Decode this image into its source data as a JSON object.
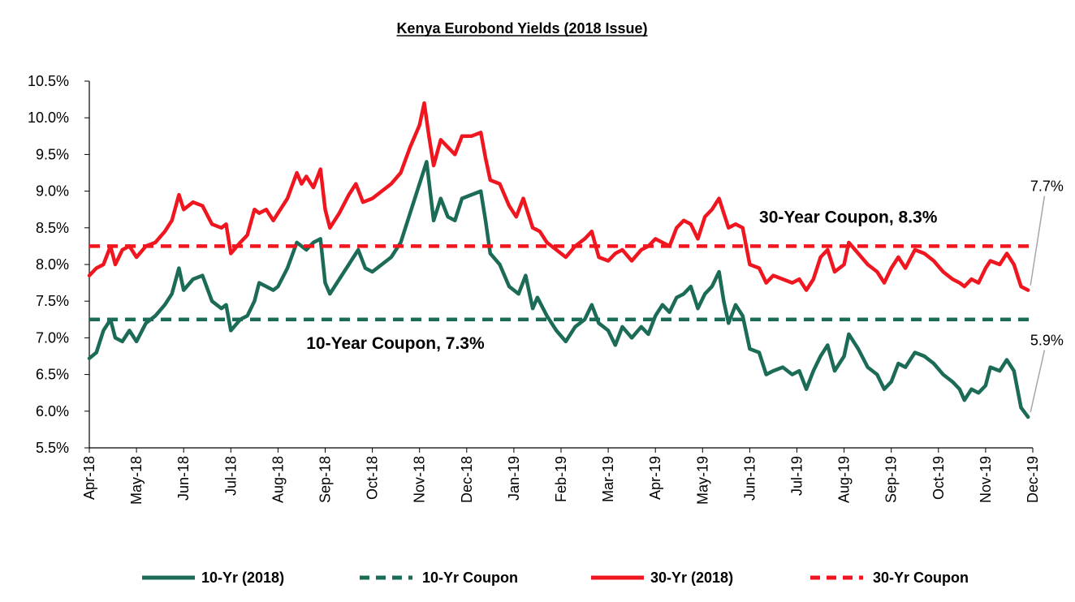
{
  "chart_data": {
    "type": "line",
    "title": "Kenya Eurobond Yields (2018 Issue)",
    "y_ticks": [
      "10.5%",
      "10.0%",
      "9.5%",
      "9.0%",
      "8.5%",
      "8.0%",
      "7.5%",
      "7.0%",
      "6.5%",
      "6.0%",
      "5.5%"
    ],
    "ylim": [
      5.5,
      10.5
    ],
    "x_ticks": [
      "Apr-18",
      "May-18",
      "Jun-18",
      "Jul-18",
      "Aug-18",
      "Sep-18",
      "Oct-18",
      "Nov-18",
      "Dec-18",
      "Jan-19",
      "Feb-19",
      "Mar-19",
      "Apr-19",
      "May-19",
      "Jun-19",
      "Jul-19",
      "Aug-19",
      "Sep-19",
      "Oct-19",
      "Nov-19",
      "Dec-19"
    ],
    "xlim": [
      0,
      20
    ],
    "grid": false,
    "legend_position": "bottom",
    "series": [
      {
        "name": "10-Yr (2018)",
        "style": "solid",
        "color": "#1b6b57",
        "points": [
          [
            0,
            6.72
          ],
          [
            0.15,
            6.8
          ],
          [
            0.3,
            7.1
          ],
          [
            0.45,
            7.25
          ],
          [
            0.55,
            7.0
          ],
          [
            0.7,
            6.95
          ],
          [
            0.85,
            7.1
          ],
          [
            1.0,
            6.95
          ],
          [
            1.2,
            7.2
          ],
          [
            1.4,
            7.3
          ],
          [
            1.6,
            7.45
          ],
          [
            1.75,
            7.6
          ],
          [
            1.9,
            7.95
          ],
          [
            2.0,
            7.65
          ],
          [
            2.2,
            7.8
          ],
          [
            2.4,
            7.85
          ],
          [
            2.6,
            7.5
          ],
          [
            2.8,
            7.4
          ],
          [
            2.9,
            7.45
          ],
          [
            3.0,
            7.1
          ],
          [
            3.2,
            7.25
          ],
          [
            3.35,
            7.3
          ],
          [
            3.5,
            7.5
          ],
          [
            3.6,
            7.75
          ],
          [
            3.75,
            7.7
          ],
          [
            3.9,
            7.65
          ],
          [
            4.0,
            7.7
          ],
          [
            4.2,
            7.95
          ],
          [
            4.4,
            8.3
          ],
          [
            4.6,
            8.2
          ],
          [
            4.75,
            8.3
          ],
          [
            4.9,
            8.35
          ],
          [
            5.0,
            7.75
          ],
          [
            5.1,
            7.6
          ],
          [
            5.3,
            7.8
          ],
          [
            5.5,
            8.0
          ],
          [
            5.7,
            8.2
          ],
          [
            5.85,
            7.95
          ],
          [
            6.0,
            7.9
          ],
          [
            6.2,
            8.0
          ],
          [
            6.4,
            8.1
          ],
          [
            6.6,
            8.3
          ],
          [
            6.8,
            8.7
          ],
          [
            6.95,
            9.0
          ],
          [
            7.0,
            9.1
          ],
          [
            7.15,
            9.4
          ],
          [
            7.3,
            8.6
          ],
          [
            7.45,
            8.9
          ],
          [
            7.6,
            8.65
          ],
          [
            7.75,
            8.6
          ],
          [
            7.9,
            8.9
          ],
          [
            8.1,
            8.95
          ],
          [
            8.3,
            9.0
          ],
          [
            8.4,
            8.6
          ],
          [
            8.5,
            8.15
          ],
          [
            8.7,
            8.0
          ],
          [
            8.9,
            7.7
          ],
          [
            9.1,
            7.6
          ],
          [
            9.25,
            7.85
          ],
          [
            9.4,
            7.4
          ],
          [
            9.5,
            7.55
          ],
          [
            9.7,
            7.3
          ],
          [
            9.9,
            7.1
          ],
          [
            10.1,
            6.95
          ],
          [
            10.3,
            7.15
          ],
          [
            10.5,
            7.25
          ],
          [
            10.65,
            7.45
          ],
          [
            10.8,
            7.2
          ],
          [
            11.0,
            7.1
          ],
          [
            11.15,
            6.9
          ],
          [
            11.3,
            7.15
          ],
          [
            11.5,
            7.0
          ],
          [
            11.7,
            7.15
          ],
          [
            11.85,
            7.05
          ],
          [
            12.0,
            7.3
          ],
          [
            12.15,
            7.45
          ],
          [
            12.3,
            7.35
          ],
          [
            12.45,
            7.55
          ],
          [
            12.6,
            7.6
          ],
          [
            12.75,
            7.7
          ],
          [
            12.9,
            7.4
          ],
          [
            13.05,
            7.6
          ],
          [
            13.2,
            7.7
          ],
          [
            13.35,
            7.9
          ],
          [
            13.45,
            7.5
          ],
          [
            13.55,
            7.2
          ],
          [
            13.7,
            7.45
          ],
          [
            13.85,
            7.3
          ],
          [
            14.0,
            6.85
          ],
          [
            14.2,
            6.8
          ],
          [
            14.35,
            6.5
          ],
          [
            14.5,
            6.55
          ],
          [
            14.7,
            6.6
          ],
          [
            14.9,
            6.5
          ],
          [
            15.05,
            6.55
          ],
          [
            15.2,
            6.3
          ],
          [
            15.35,
            6.55
          ],
          [
            15.5,
            6.75
          ],
          [
            15.65,
            6.9
          ],
          [
            15.8,
            6.55
          ],
          [
            16.0,
            6.75
          ],
          [
            16.1,
            7.05
          ],
          [
            16.3,
            6.85
          ],
          [
            16.5,
            6.6
          ],
          [
            16.7,
            6.5
          ],
          [
            16.85,
            6.3
          ],
          [
            17.0,
            6.4
          ],
          [
            17.15,
            6.65
          ],
          [
            17.3,
            6.6
          ],
          [
            17.5,
            6.8
          ],
          [
            17.7,
            6.75
          ],
          [
            17.9,
            6.65
          ],
          [
            18.1,
            6.5
          ],
          [
            18.3,
            6.4
          ],
          [
            18.45,
            6.3
          ],
          [
            18.55,
            6.15
          ],
          [
            18.7,
            6.3
          ],
          [
            18.85,
            6.25
          ],
          [
            19.0,
            6.35
          ],
          [
            19.1,
            6.6
          ],
          [
            19.3,
            6.55
          ],
          [
            19.45,
            6.7
          ],
          [
            19.6,
            6.55
          ],
          [
            19.75,
            6.05
          ],
          [
            19.9,
            5.92
          ]
        ]
      },
      {
        "name": "10-Yr Coupon",
        "style": "dashed",
        "color": "#1b6b57",
        "points": [
          [
            0,
            7.25
          ],
          [
            20,
            7.25
          ]
        ]
      },
      {
        "name": "30-Yr (2018)",
        "style": "solid",
        "color": "#f0161f",
        "points": [
          [
            0,
            7.85
          ],
          [
            0.15,
            7.95
          ],
          [
            0.3,
            8.0
          ],
          [
            0.45,
            8.25
          ],
          [
            0.55,
            8.0
          ],
          [
            0.7,
            8.2
          ],
          [
            0.85,
            8.25
          ],
          [
            1.0,
            8.1
          ],
          [
            1.2,
            8.25
          ],
          [
            1.4,
            8.3
          ],
          [
            1.6,
            8.45
          ],
          [
            1.75,
            8.6
          ],
          [
            1.9,
            8.95
          ],
          [
            2.0,
            8.75
          ],
          [
            2.2,
            8.85
          ],
          [
            2.4,
            8.8
          ],
          [
            2.6,
            8.55
          ],
          [
            2.8,
            8.5
          ],
          [
            2.9,
            8.55
          ],
          [
            3.0,
            8.15
          ],
          [
            3.2,
            8.3
          ],
          [
            3.35,
            8.4
          ],
          [
            3.5,
            8.75
          ],
          [
            3.6,
            8.7
          ],
          [
            3.75,
            8.75
          ],
          [
            3.9,
            8.6
          ],
          [
            4.0,
            8.7
          ],
          [
            4.2,
            8.9
          ],
          [
            4.4,
            9.25
          ],
          [
            4.5,
            9.1
          ],
          [
            4.6,
            9.2
          ],
          [
            4.75,
            9.05
          ],
          [
            4.9,
            9.3
          ],
          [
            5.0,
            8.75
          ],
          [
            5.1,
            8.5
          ],
          [
            5.3,
            8.7
          ],
          [
            5.5,
            8.95
          ],
          [
            5.65,
            9.1
          ],
          [
            5.8,
            8.85
          ],
          [
            6.0,
            8.9
          ],
          [
            6.2,
            9.0
          ],
          [
            6.4,
            9.1
          ],
          [
            6.6,
            9.25
          ],
          [
            6.8,
            9.6
          ],
          [
            7.0,
            9.9
          ],
          [
            7.1,
            10.2
          ],
          [
            7.2,
            9.75
          ],
          [
            7.3,
            9.35
          ],
          [
            7.45,
            9.7
          ],
          [
            7.6,
            9.6
          ],
          [
            7.75,
            9.5
          ],
          [
            7.9,
            9.75
          ],
          [
            8.1,
            9.75
          ],
          [
            8.3,
            9.8
          ],
          [
            8.4,
            9.45
          ],
          [
            8.5,
            9.15
          ],
          [
            8.7,
            9.1
          ],
          [
            8.9,
            8.8
          ],
          [
            9.05,
            8.65
          ],
          [
            9.2,
            8.9
          ],
          [
            9.4,
            8.5
          ],
          [
            9.55,
            8.45
          ],
          [
            9.7,
            8.3
          ],
          [
            9.9,
            8.2
          ],
          [
            10.1,
            8.1
          ],
          [
            10.3,
            8.25
          ],
          [
            10.5,
            8.35
          ],
          [
            10.65,
            8.45
          ],
          [
            10.8,
            8.1
          ],
          [
            11.0,
            8.05
          ],
          [
            11.15,
            8.15
          ],
          [
            11.3,
            8.2
          ],
          [
            11.5,
            8.05
          ],
          [
            11.7,
            8.2
          ],
          [
            11.85,
            8.25
          ],
          [
            12.0,
            8.35
          ],
          [
            12.15,
            8.3
          ],
          [
            12.3,
            8.25
          ],
          [
            12.45,
            8.5
          ],
          [
            12.6,
            8.6
          ],
          [
            12.75,
            8.55
          ],
          [
            12.9,
            8.35
          ],
          [
            13.05,
            8.65
          ],
          [
            13.2,
            8.75
          ],
          [
            13.35,
            8.9
          ],
          [
            13.45,
            8.7
          ],
          [
            13.55,
            8.5
          ],
          [
            13.7,
            8.55
          ],
          [
            13.85,
            8.5
          ],
          [
            14.0,
            8.0
          ],
          [
            14.2,
            7.95
          ],
          [
            14.35,
            7.75
          ],
          [
            14.5,
            7.85
          ],
          [
            14.7,
            7.8
          ],
          [
            14.9,
            7.75
          ],
          [
            15.05,
            7.8
          ],
          [
            15.2,
            7.65
          ],
          [
            15.35,
            7.8
          ],
          [
            15.5,
            8.1
          ],
          [
            15.65,
            8.2
          ],
          [
            15.8,
            7.9
          ],
          [
            16.0,
            8.0
          ],
          [
            16.1,
            8.3
          ],
          [
            16.3,
            8.15
          ],
          [
            16.5,
            8.0
          ],
          [
            16.7,
            7.9
          ],
          [
            16.85,
            7.75
          ],
          [
            17.0,
            7.95
          ],
          [
            17.15,
            8.1
          ],
          [
            17.3,
            7.95
          ],
          [
            17.5,
            8.2
          ],
          [
            17.7,
            8.15
          ],
          [
            17.9,
            8.05
          ],
          [
            18.1,
            7.9
          ],
          [
            18.3,
            7.8
          ],
          [
            18.45,
            7.75
          ],
          [
            18.55,
            7.7
          ],
          [
            18.7,
            7.8
          ],
          [
            18.85,
            7.75
          ],
          [
            19.0,
            7.95
          ],
          [
            19.1,
            8.05
          ],
          [
            19.3,
            8.0
          ],
          [
            19.45,
            8.15
          ],
          [
            19.6,
            8.0
          ],
          [
            19.75,
            7.7
          ],
          [
            19.9,
            7.65
          ]
        ]
      },
      {
        "name": "30-Yr Coupon",
        "style": "dashed",
        "color": "#f0161f",
        "points": [
          [
            0,
            8.25
          ],
          [
            20,
            8.25
          ]
        ]
      }
    ],
    "annotations": [
      {
        "key": "coupon30",
        "text": "30-Year Coupon, 8.3%",
        "x": 14.2,
        "y": 8.57
      },
      {
        "key": "coupon10",
        "text": "10-Year Coupon, 7.3%",
        "x": 4.6,
        "y": 6.85
      }
    ],
    "end_labels": [
      {
        "key": "end30",
        "text": "7.7%",
        "x": 20.3,
        "y": 9.0,
        "point": [
          19.9,
          7.65
        ]
      },
      {
        "key": "end10",
        "text": "5.9%",
        "x": 20.3,
        "y": 6.9,
        "point": [
          19.9,
          5.92
        ]
      }
    ]
  }
}
